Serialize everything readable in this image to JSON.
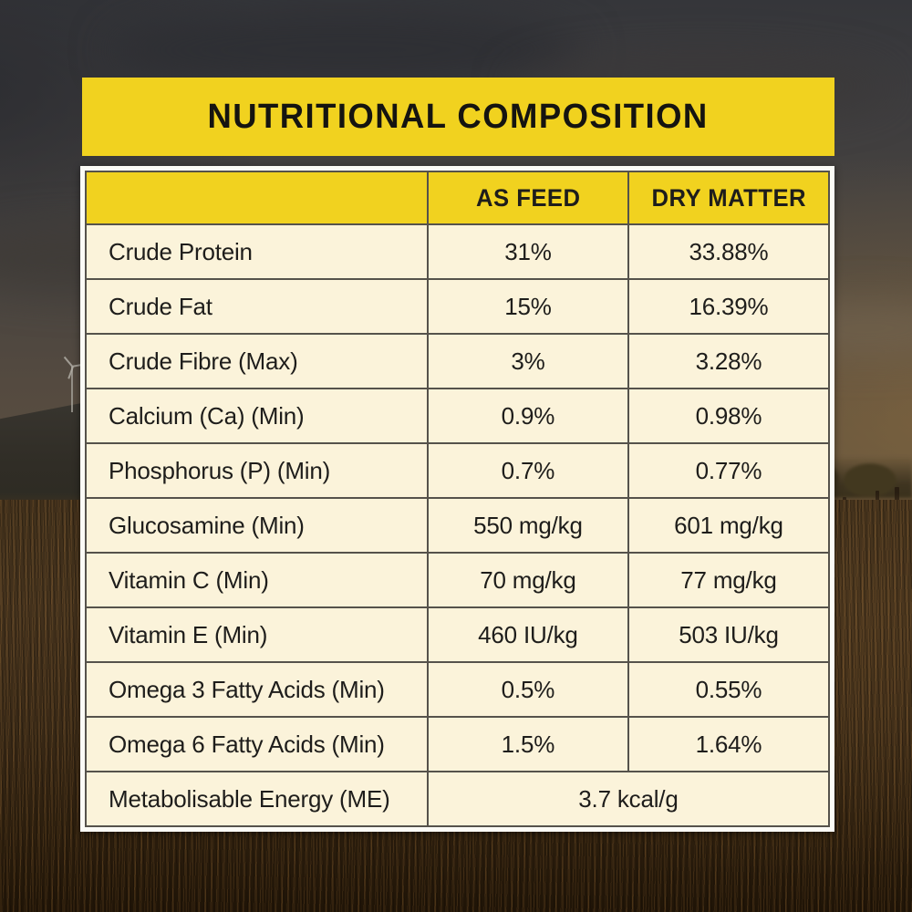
{
  "title": "NUTRITIONAL COMPOSITION",
  "table": {
    "columns": [
      "",
      "AS FEED",
      "DRY MATTER"
    ],
    "rows": [
      {
        "label": "Crude Protein",
        "as_feed": "31%",
        "dry_matter": "33.88%"
      },
      {
        "label": "Crude Fat",
        "as_feed": "15%",
        "dry_matter": "16.39%"
      },
      {
        "label": "Crude Fibre (Max)",
        "as_feed": "3%",
        "dry_matter": "3.28%"
      },
      {
        "label": "Calcium (Ca) (Min)",
        "as_feed": "0.9%",
        "dry_matter": "0.98%"
      },
      {
        "label": "Phosphorus (P) (Min)",
        "as_feed": "0.7%",
        "dry_matter": "0.77%"
      },
      {
        "label": "Glucosamine (Min)",
        "as_feed": "550 mg/kg",
        "dry_matter": "601 mg/kg"
      },
      {
        "label": "Vitamin C (Min)",
        "as_feed": "70 mg/kg",
        "dry_matter": "77 mg/kg"
      },
      {
        "label": "Vitamin E (Min)",
        "as_feed": "460 IU/kg",
        "dry_matter": "503 IU/kg"
      },
      {
        "label": "Omega 3 Fatty Acids (Min)",
        "as_feed": "0.5%",
        "dry_matter": "0.55%"
      },
      {
        "label": "Omega 6 Fatty Acids (Min)",
        "as_feed": "1.5%",
        "dry_matter": "1.64%"
      },
      {
        "label": "Metabolisable Energy (ME)",
        "value": "3.7 kcal/g"
      }
    ]
  },
  "colors": {
    "banner_yellow": "#F1D21F",
    "row_cream": "#FBF3DA",
    "border_gray": "#55524B",
    "frame_white": "#FBFBF6",
    "text_black": "#1E1D1B"
  }
}
